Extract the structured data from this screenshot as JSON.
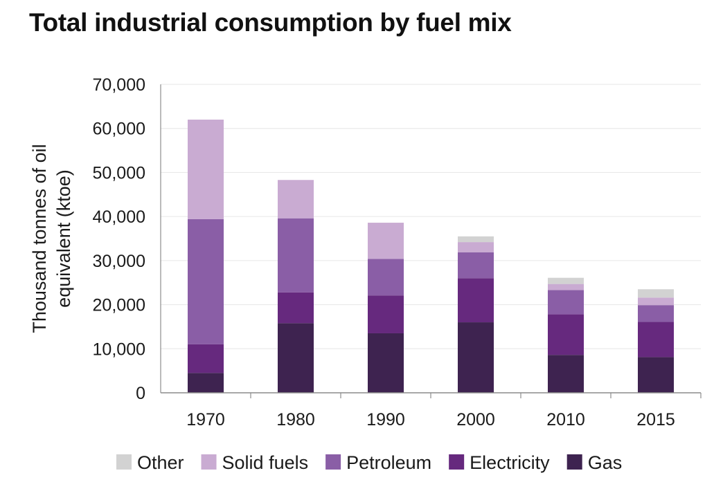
{
  "chart_data": {
    "type": "bar",
    "stacked": true,
    "title": "Total industrial consumption by fuel mix",
    "xlabel": "",
    "ylabel_lines": [
      "Thousand tonnes of oil",
      "equivalent (ktoe)"
    ],
    "ylim": [
      0,
      70000
    ],
    "yticks": [
      0,
      10000,
      20000,
      30000,
      40000,
      50000,
      60000,
      70000
    ],
    "ytick_labels": [
      "0",
      "10,000",
      "20,000",
      "30,000",
      "40,000",
      "50,000",
      "60,000",
      "70,000"
    ],
    "categories": [
      "1970",
      "1980",
      "1990",
      "2000",
      "2010",
      "2015"
    ],
    "grid": "horizontal",
    "legend_position": "bottom",
    "series": [
      {
        "name": "Gas",
        "color": "#3e2350",
        "values": [
          4500,
          15800,
          13500,
          16000,
          8600,
          8100
        ]
      },
      {
        "name": "Electricity",
        "color": "#66297e",
        "values": [
          6500,
          7000,
          8600,
          10000,
          9200,
          8000
        ]
      },
      {
        "name": "Petroleum",
        "color": "#8a5ea6",
        "values": [
          28400,
          16800,
          8300,
          5900,
          5500,
          3800
        ]
      },
      {
        "name": "Solid fuels",
        "color": "#c9abd2",
        "values": [
          22600,
          8700,
          8200,
          2300,
          1400,
          1700
        ]
      },
      {
        "name": "Other",
        "color": "#d2d2d2",
        "values": [
          0,
          0,
          0,
          1300,
          1400,
          1900
        ]
      }
    ],
    "legend_order": [
      "Other",
      "Solid fuels",
      "Petroleum",
      "Electricity",
      "Gas"
    ]
  }
}
